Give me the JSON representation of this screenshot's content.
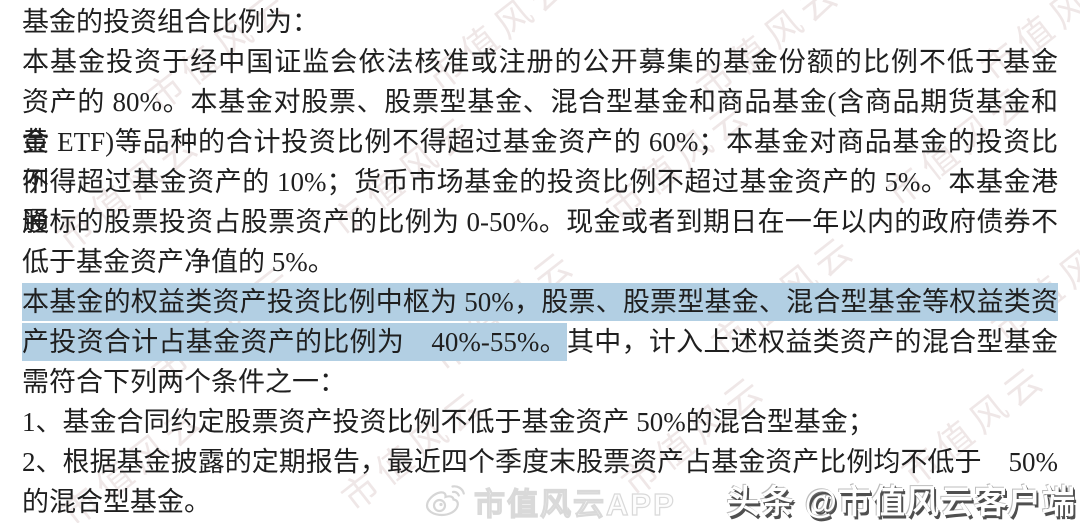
{
  "document": {
    "lines": [
      {
        "full": false,
        "segments": [
          {
            "highlight": false,
            "text": "基金的投资组合比例为："
          }
        ]
      },
      {
        "full": true,
        "segments": [
          {
            "highlight": false,
            "text": "本基金投资于经中国证监会依法核准或注册的公开募集的基金份额的比例不低于基金"
          }
        ]
      },
      {
        "full": true,
        "segments": [
          {
            "highlight": false,
            "text": "资产的 80%。本基金对股票、股票型基金、混合型基金和商品基金(含商品期货基金和黄"
          }
        ]
      },
      {
        "full": true,
        "segments": [
          {
            "highlight": false,
            "text": "金 ETF)等品种的合计投资比例不得超过基金资产的 60%；本基金对商品基金的投资比例"
          }
        ]
      },
      {
        "full": true,
        "segments": [
          {
            "highlight": false,
            "text": "不得超过基金资产的 10%；货币市场基金的投资比例不超过基金资产的 5%。本基金港股"
          }
        ]
      },
      {
        "full": true,
        "segments": [
          {
            "highlight": false,
            "text": "通标的股票投资占股票资产的比例为 0-50%。现金或者到期日在一年以内的政府债券不"
          }
        ]
      },
      {
        "full": false,
        "segments": [
          {
            "highlight": false,
            "text": "低于基金资产净值的 5%。"
          }
        ]
      },
      {
        "full": true,
        "segments": [
          {
            "highlight": true,
            "text": "本基金的权益类资产投资比例中枢为 50%，股票、股票型基金、混合型基金等权益类资"
          }
        ]
      },
      {
        "full": true,
        "segments": [
          {
            "highlight": true,
            "text": "产投资合计占基金资产的比例为　40%-55%。"
          },
          {
            "highlight": false,
            "text": "其中，计入上述权益类资产的混合型基金"
          }
        ]
      },
      {
        "full": false,
        "segments": [
          {
            "highlight": false,
            "text": "需符合下列两个条件之一："
          }
        ]
      },
      {
        "full": false,
        "segments": [
          {
            "highlight": false,
            "text": "1、基金合同约定股票资产投资比例不低于基金资产 50%的混合型基金；"
          }
        ]
      },
      {
        "full": true,
        "segments": [
          {
            "highlight": false,
            "text": "2、根据基金披露的定期报告，最近四个季度末股票资产占基金资产比例均不低于　50%"
          }
        ]
      },
      {
        "full": false,
        "segments": [
          {
            "highlight": false,
            "text": "的混合型基金。"
          }
        ]
      }
    ]
  },
  "watermarks": {
    "pattern_text": "市值风云",
    "app_badge": {
      "icon": "weibo-icon",
      "text": "市值风云APP"
    },
    "corner": {
      "text": "头条 @市值风云客户端"
    }
  },
  "colors": {
    "highlight": "#b2cfe3",
    "body_text": "#1f1f1f",
    "watermark_pattern": "#dccccc"
  }
}
